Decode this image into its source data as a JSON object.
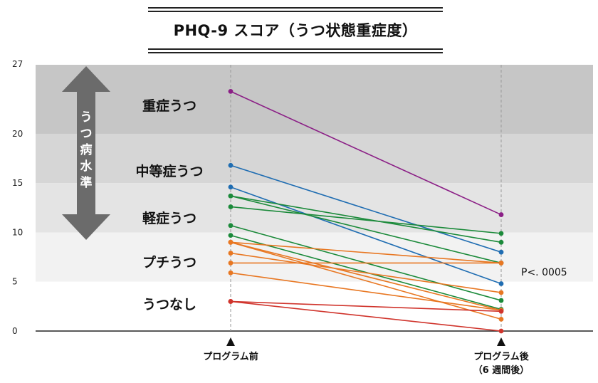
{
  "title": "PHQ-9 スコア（うつ状態重症度）",
  "chart_data": {
    "type": "line",
    "title": "PHQ-9 スコア（うつ状態重症度）",
    "x": [
      "プログラム前",
      "プログラム後"
    ],
    "x_sub": "（6 週間後）",
    "ylim": [
      0,
      27
    ],
    "yticks": [
      0,
      5,
      10,
      15,
      20,
      27
    ],
    "bands": [
      {
        "label": "重症うつ",
        "from": 20,
        "to": 27,
        "fill": "#c6c6c6",
        "text_color": "#8b1f86"
      },
      {
        "label": "中等症うつ",
        "from": 15,
        "to": 20,
        "fill": "#d6d6d6",
        "text_color": "#1f6db2"
      },
      {
        "label": "軽症うつ",
        "from": 10,
        "to": 15,
        "fill": "#e4e4e4",
        "text_color": "#1b8a3a"
      },
      {
        "label": "プチうつ",
        "from": 5,
        "to": 10,
        "fill": "#f2f2f2",
        "text_color": "#e87722"
      },
      {
        "label": "うつなし",
        "from": 0,
        "to": 5,
        "fill": "#ffffff",
        "text_color": "#d0342c"
      }
    ],
    "arrow_label": "うつ病水準",
    "annotation": "P<. 0005",
    "series": [
      {
        "color": "#8b1f86",
        "values": [
          24.3,
          11.8
        ]
      },
      {
        "color": "#1f6db2",
        "values": [
          16.8,
          8.0
        ]
      },
      {
        "color": "#1f6db2",
        "values": [
          14.6,
          4.8
        ]
      },
      {
        "color": "#1b8a3a",
        "values": [
          13.7,
          9.0
        ]
      },
      {
        "color": "#1b8a3a",
        "values": [
          13.7,
          6.9
        ]
      },
      {
        "color": "#1b8a3a",
        "values": [
          12.6,
          9.9
        ]
      },
      {
        "color": "#1b8a3a",
        "values": [
          10.7,
          3.1
        ]
      },
      {
        "color": "#1b8a3a",
        "values": [
          9.7,
          2.2
        ]
      },
      {
        "color": "#e87722",
        "values": [
          9.0,
          6.9
        ]
      },
      {
        "color": "#e87722",
        "values": [
          9.0,
          2.1
        ]
      },
      {
        "color": "#e87722",
        "values": [
          9.0,
          1.2
        ]
      },
      {
        "color": "#e87722",
        "values": [
          7.9,
          3.9
        ]
      },
      {
        "color": "#e87722",
        "values": [
          6.9,
          6.9
        ]
      },
      {
        "color": "#e87722",
        "values": [
          5.9,
          2.1
        ]
      },
      {
        "color": "#d0342c",
        "values": [
          3.0,
          2.0
        ]
      },
      {
        "color": "#d0342c",
        "values": [
          3.0,
          0.0
        ]
      }
    ]
  }
}
